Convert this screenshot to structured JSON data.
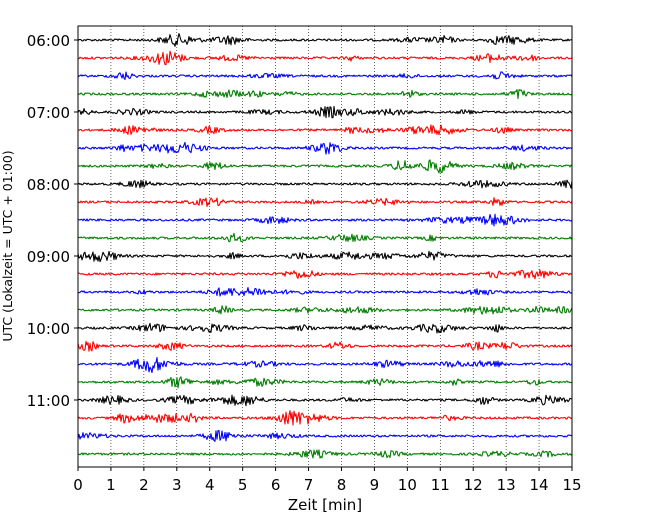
{
  "chart_data": {
    "type": "line",
    "title": "",
    "xlabel": "Zeit  [min]",
    "ylabel": "UTC (Lokalzeit = UTC + 01:00)",
    "xlim": [
      0,
      15
    ],
    "x_ticks": [
      "0",
      "1",
      "2",
      "3",
      "4",
      "5",
      "6",
      "7",
      "8",
      "9",
      "10",
      "11",
      "12",
      "13",
      "14",
      "15"
    ],
    "y_tick_labels": [
      "06:00",
      "07:00",
      "08:00",
      "09:00",
      "10:00",
      "11:00"
    ],
    "trace_start_times": [
      "06:00",
      "06:15",
      "06:30",
      "06:45",
      "07:00",
      "07:15",
      "07:30",
      "07:45",
      "08:00",
      "08:15",
      "08:30",
      "08:45",
      "09:00",
      "09:15",
      "09:30",
      "09:45",
      "10:00",
      "10:15",
      "10:30",
      "10:45",
      "11:00",
      "11:15",
      "11:30",
      "11:45"
    ],
    "trace_colors": [
      "#000000",
      "#ff0000",
      "#0000ff",
      "#007f00"
    ],
    "grid_x": true,
    "grid_style": "dotted"
  }
}
